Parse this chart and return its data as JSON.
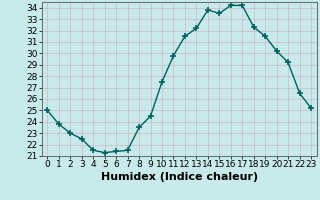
{
  "x": [
    0,
    1,
    2,
    3,
    4,
    5,
    6,
    7,
    8,
    9,
    10,
    11,
    12,
    13,
    14,
    15,
    16,
    17,
    18,
    19,
    20,
    21,
    22,
    23
  ],
  "y": [
    25.0,
    23.8,
    23.0,
    22.5,
    21.5,
    21.3,
    21.4,
    21.5,
    23.5,
    24.5,
    27.5,
    29.8,
    31.5,
    32.2,
    33.8,
    33.5,
    34.2,
    34.2,
    32.3,
    31.5,
    30.2,
    29.2,
    26.5,
    25.2
  ],
  "line_color": "#006060",
  "marker": "+",
  "marker_size": 4,
  "marker_lw": 1.2,
  "xlim": [
    -0.5,
    23.5
  ],
  "ylim": [
    21,
    34.5
  ],
  "yticks": [
    21,
    22,
    23,
    24,
    25,
    26,
    27,
    28,
    29,
    30,
    31,
    32,
    33,
    34
  ],
  "xticks": [
    0,
    1,
    2,
    3,
    4,
    5,
    6,
    7,
    8,
    9,
    10,
    11,
    12,
    13,
    14,
    15,
    16,
    17,
    18,
    19,
    20,
    21,
    22,
    23
  ],
  "xlabel": "Humidex (Indice chaleur)",
  "background_color": "#c8eaea",
  "grid_color_major": "#aaaaaa",
  "grid_color_minor": "#ccdddd",
  "tick_fontsize": 6.5,
  "label_fontsize": 8,
  "line_width": 1.0
}
